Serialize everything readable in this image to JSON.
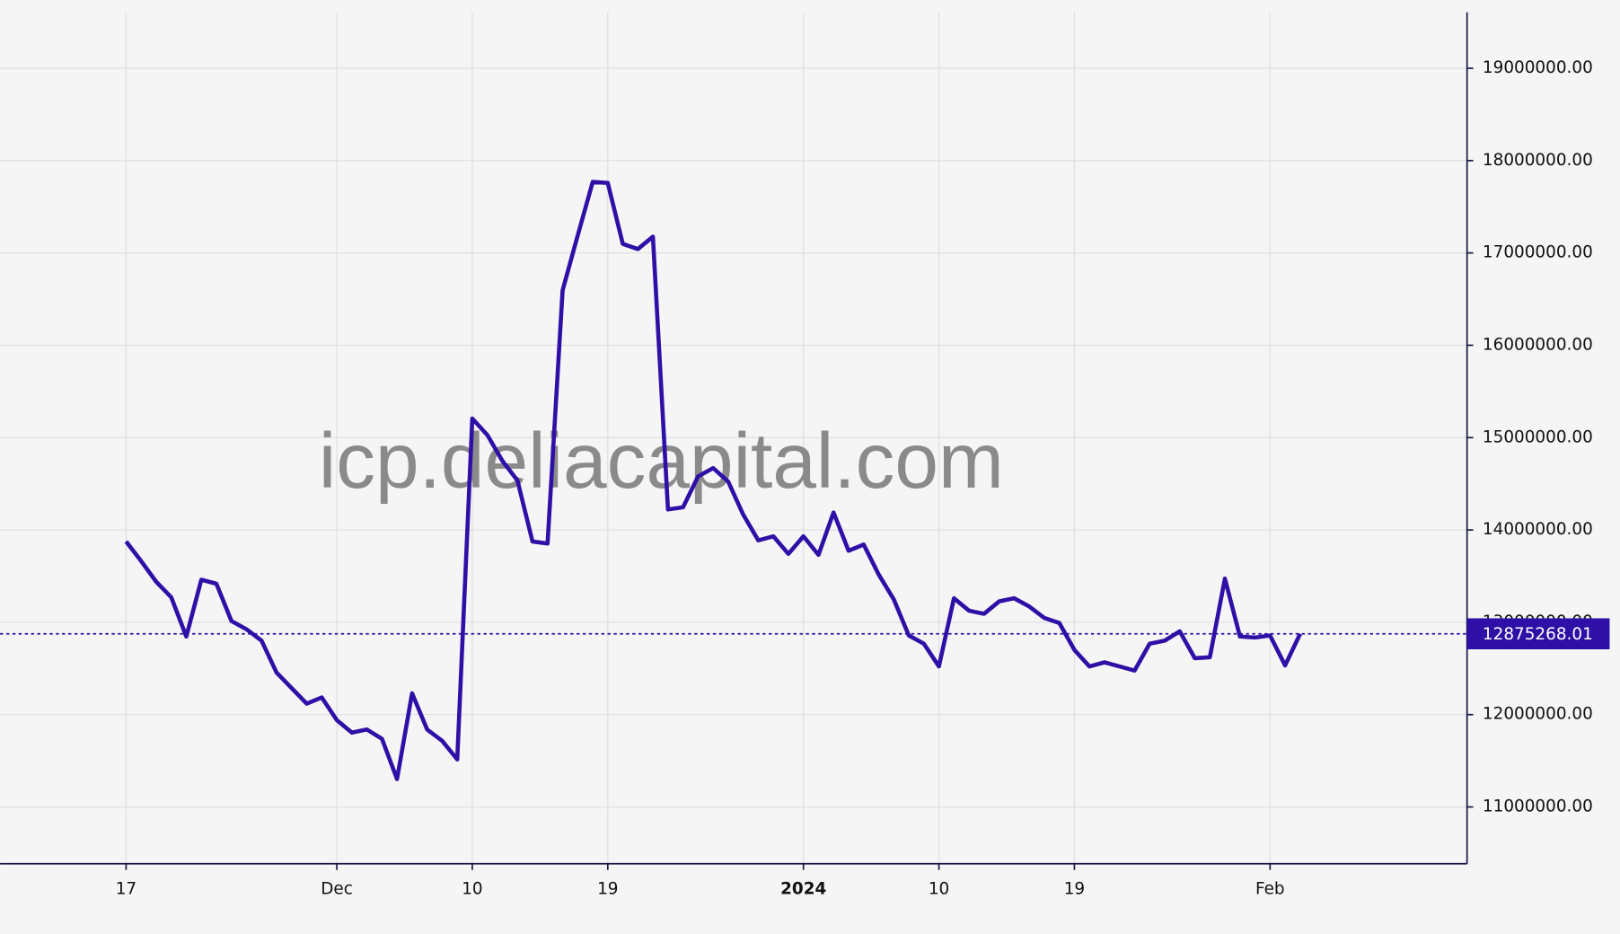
{
  "chart_data": {
    "type": "line",
    "watermark": "icp.deliacapital.com",
    "categories": [
      "17",
      null,
      null,
      null,
      null,
      null,
      null,
      null,
      null,
      null,
      null,
      null,
      null,
      null,
      "Dec",
      null,
      null,
      null,
      null,
      null,
      null,
      null,
      null,
      "10",
      null,
      null,
      null,
      null,
      null,
      null,
      null,
      null,
      "19",
      null,
      null,
      null,
      null,
      null,
      null,
      null,
      null,
      null,
      null,
      null,
      null,
      "2024",
      null,
      null,
      null,
      null,
      null,
      null,
      null,
      null,
      "10",
      null,
      null,
      null,
      null,
      null,
      null,
      null,
      null,
      "19",
      null,
      null,
      null,
      null,
      null,
      null,
      null,
      null,
      null,
      null,
      null,
      null,
      "Feb",
      null,
      null
    ],
    "series": [
      {
        "color": "#2f10a6",
        "values": [
          13875000,
          13663000,
          13439000,
          13271000,
          12846000,
          13461000,
          13417000,
          13014000,
          12924000,
          12801000,
          12454000,
          12287000,
          12119000,
          12186000,
          11940000,
          11805000,
          11839000,
          11738000,
          11302000,
          12231000,
          11839000,
          11716000,
          11515000,
          15207000,
          15028000,
          14748000,
          14536000,
          13875000,
          13853000,
          16594000,
          17187000,
          17769000,
          17758000,
          17098000,
          17042000,
          17176000,
          14222000,
          14245000,
          14580000,
          14670000,
          14524000,
          14166000,
          13887000,
          13931000,
          13741000,
          13931000,
          13730000,
          14189000,
          13775000,
          13842000,
          13517000,
          13249000,
          12857000,
          12768000,
          12522000,
          13260000,
          13126000,
          13092000,
          13226000,
          13260000,
          13171000,
          13047000,
          12992000,
          12701000,
          12522000,
          12566000,
          12522000,
          12477000,
          12768000,
          12801000,
          12902000,
          12611000,
          12622000,
          13473000,
          12846000,
          12835000,
          12857000,
          12533000,
          12875268.01
        ]
      }
    ],
    "ylim": [
      10385000,
      19605000
    ],
    "yticks": [
      {
        "value": 11000000,
        "label": "11000000.00"
      },
      {
        "value": 12000000,
        "label": "12000000.00"
      },
      {
        "value": 13000000,
        "label": "13000000.00"
      },
      {
        "value": 14000000,
        "label": "14000000.00"
      },
      {
        "value": 15000000,
        "label": "15000000.00"
      },
      {
        "value": 16000000,
        "label": "16000000.00"
      },
      {
        "value": 17000000,
        "label": "17000000.00"
      },
      {
        "value": 18000000,
        "label": "18000000.00"
      },
      {
        "value": 19000000,
        "label": "19000000.00"
      }
    ],
    "grid": true
  }
}
